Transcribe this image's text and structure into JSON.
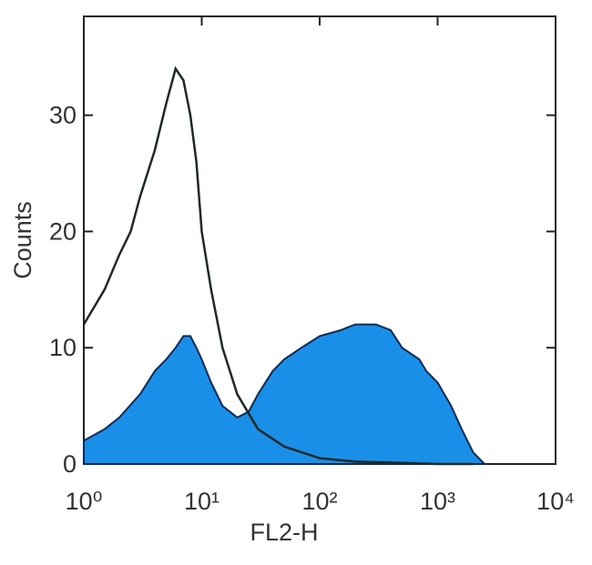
{
  "chart_data": {
    "type": "line",
    "xlabel": "FL2-H",
    "ylabel": "Counts",
    "xscale": "log",
    "xlim": [
      1,
      10000
    ],
    "ylim": [
      0,
      38.5
    ],
    "xticks": [
      {
        "value": 1,
        "label": "10⁰"
      },
      {
        "value": 10,
        "label": "10¹"
      },
      {
        "value": 100,
        "label": "10²"
      },
      {
        "value": 1000,
        "label": "10³"
      },
      {
        "value": 10000,
        "label": "10⁴"
      }
    ],
    "yticks": [
      0,
      10,
      20,
      30
    ],
    "series": [
      {
        "color": "#1a8fe8",
        "fill": true,
        "x": [
          1,
          1.5,
          2,
          3,
          4,
          5,
          6,
          7,
          8,
          9,
          10,
          12,
          15,
          20,
          25,
          30,
          40,
          50,
          70,
          100,
          150,
          200,
          300,
          400,
          500,
          700,
          800,
          1000,
          1300,
          1600,
          2000,
          2500
        ],
        "values": [
          2,
          3,
          4,
          6,
          8,
          9,
          10,
          11,
          11,
          10,
          9,
          7,
          5,
          4,
          4.5,
          6,
          8,
          9,
          10,
          11,
          11.5,
          12,
          12,
          11.5,
          10,
          9,
          8,
          7,
          5,
          3,
          1,
          0
        ]
      },
      {
        "color": "#1e2a24",
        "fill": false,
        "x": [
          1,
          1.5,
          2,
          2.5,
          3,
          4,
          5,
          6,
          7,
          8,
          9,
          10,
          12,
          15,
          20,
          30,
          50,
          100,
          200,
          500,
          1000,
          2000
        ],
        "values": [
          12,
          15,
          18,
          20,
          23,
          27,
          31,
          34,
          33,
          30,
          26,
          20,
          15,
          10,
          6,
          3,
          1.5,
          0.5,
          0.2,
          0.1,
          0,
          0
        ]
      }
    ]
  }
}
